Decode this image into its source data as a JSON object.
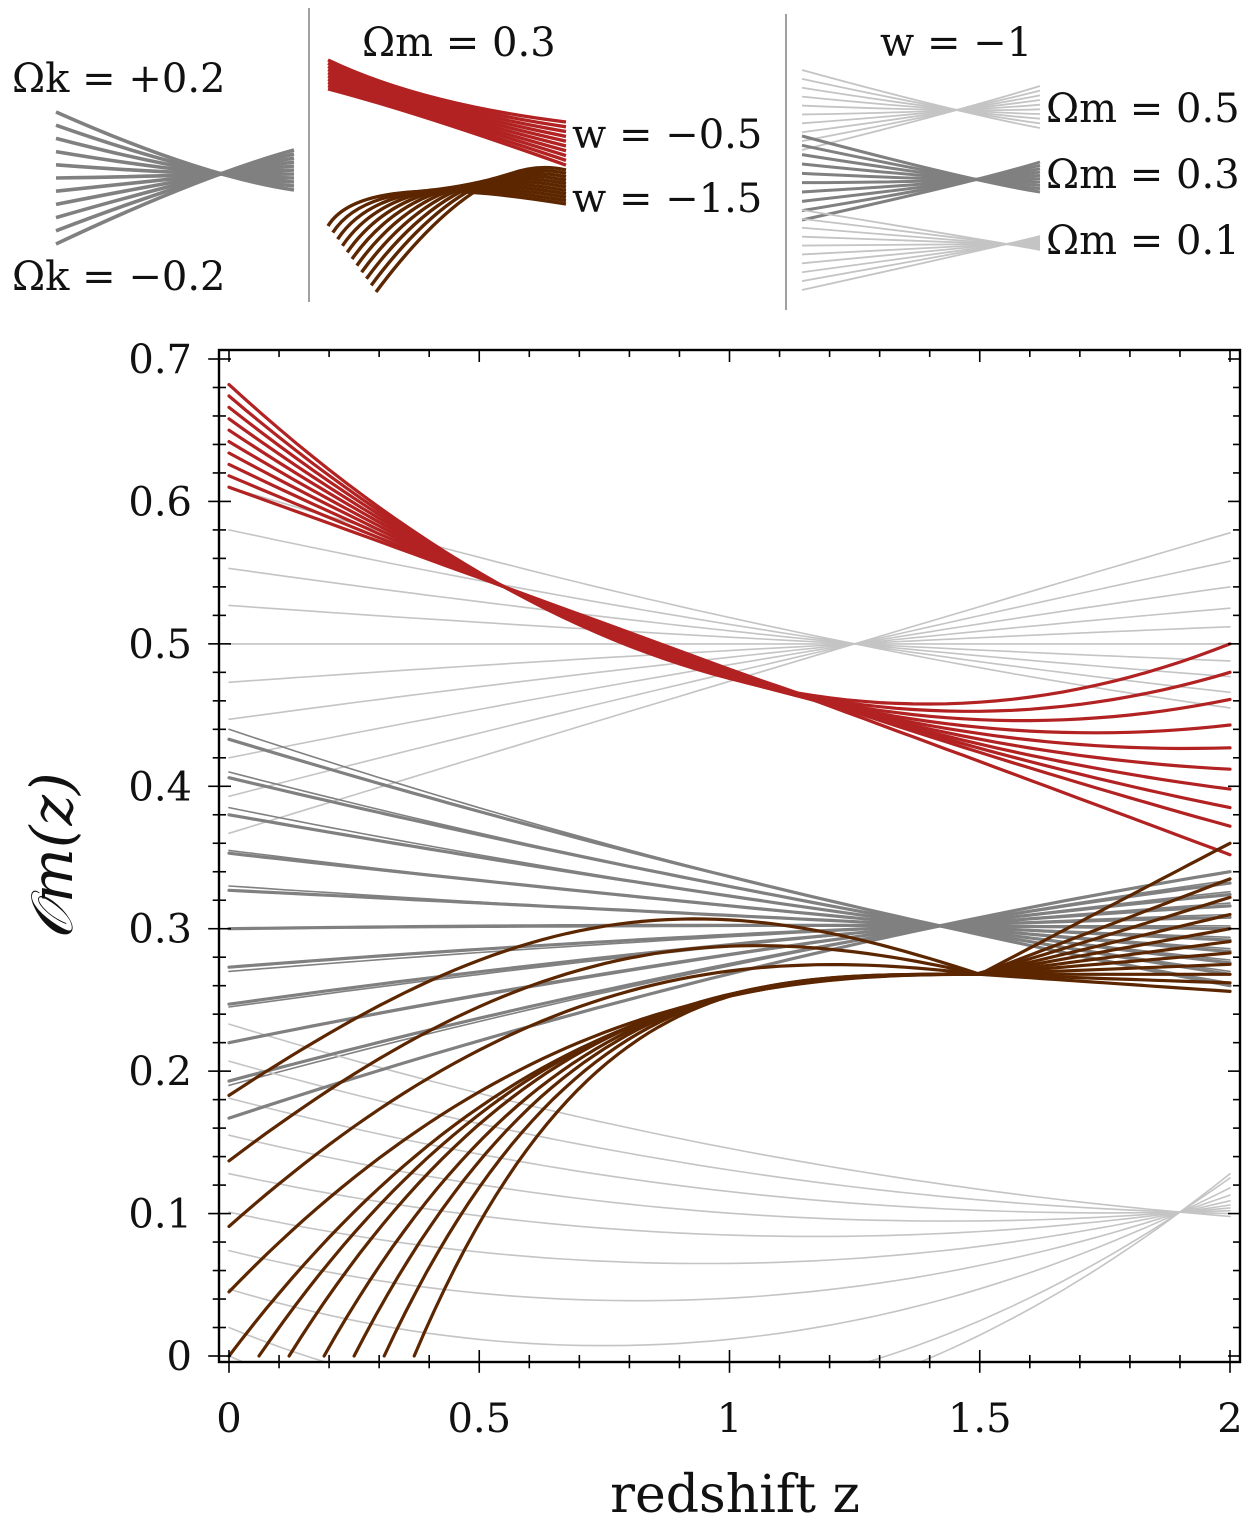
{
  "chart_data": {
    "type": "line",
    "xlabel": "redshift z",
    "ylabel": "𝒪m(z)",
    "xlim": [
      0,
      2
    ],
    "ylim": [
      0,
      0.7
    ],
    "xticks": [
      0,
      0.5,
      1,
      1.5,
      2
    ],
    "xtick_labels": [
      "0",
      "0.5",
      "1",
      "1.5",
      "2"
    ],
    "yticks": [
      0,
      0.1,
      0.2,
      0.3,
      0.4,
      0.5,
      0.6,
      0.7
    ],
    "ytick_labels": [
      "0",
      "0.1",
      "0.2",
      "0.3",
      "0.4",
      "0.5",
      "0.6",
      "0.7"
    ],
    "grid": false,
    "colors": {
      "curvature": "#808080",
      "w_minus_0_5": "#b22222",
      "w_minus_1_5": "#5c2600",
      "omega_m_light": "#c4c4c4",
      "omega_m_mid": "#808080"
    },
    "series": [
      {
        "name": "curvature family (Ωm = 0.3, w = −1), Ωk from +0.2 to −0.2",
        "color_key": "curvature",
        "width": 3.2,
        "z0": 0.0,
        "z_cross": 1.42,
        "y_cross": 0.302,
        "y_start": [
          0.433,
          0.406,
          0.38,
          0.353,
          0.327,
          0.3,
          0.273,
          0.247,
          0.22,
          0.193,
          0.167
        ],
        "y_end": [
          0.26,
          0.268,
          0.276,
          0.284,
          0.292,
          0.3,
          0.308,
          0.316,
          0.324,
          0.332,
          0.34
        ]
      },
      {
        "name": "w = −0.5 family (Ωm = 0.3)",
        "color_key": "w_minus_0_5",
        "width": 3.2,
        "z0": 0.0,
        "z_cross": 0.55,
        "y_cross": 0.54,
        "y_start": [
          0.682,
          0.674,
          0.666,
          0.658,
          0.65,
          0.642,
          0.634,
          0.626,
          0.618,
          0.61
        ],
        "y_end": [
          0.5,
          0.48,
          0.461,
          0.443,
          0.427,
          0.412,
          0.398,
          0.385,
          0.372,
          0.352
        ]
      },
      {
        "name": "w = −1.5 family (Ωm = 0.3)",
        "color_key": "w_minus_1_5",
        "width": 3.2,
        "z_cross": 1.5,
        "y_cross": 0.268,
        "z_start": [
          0.0,
          0.0,
          0.0,
          0.0,
          0.0,
          0.06,
          0.12,
          0.19,
          0.25,
          0.31,
          0.37
        ],
        "y_start": [
          0.183,
          0.137,
          0.091,
          0.045,
          0.0,
          0.0,
          0.0,
          0.0,
          0.0,
          0.0,
          0.0
        ],
        "z_peak": [
          0.75,
          0.9,
          1.05,
          1.2,
          1.35,
          1.4,
          1.45,
          1.5,
          1.5,
          1.5,
          1.5
        ],
        "y_end": [
          0.256,
          0.262,
          0.268,
          0.275,
          0.283,
          0.291,
          0.3,
          0.31,
          0.322,
          0.335,
          0.36
        ]
      },
      {
        "name": "Ωm = 0.5 family (w = −1)",
        "color_key": "omega_m_light",
        "width": 1.6,
        "z0": 0.0,
        "z_cross": 1.25,
        "y_cross": 0.5,
        "y_start": [
          0.61,
          0.58,
          0.553,
          0.527,
          0.5,
          0.473,
          0.447,
          0.42,
          0.393,
          0.367
        ],
        "y_end": [
          0.455,
          0.466,
          0.477,
          0.488,
          0.5,
          0.512,
          0.525,
          0.54,
          0.558,
          0.578
        ]
      },
      {
        "name": "Ωm = 0.3 family (w = −1)",
        "color_key": "omega_m_mid",
        "width": 1.6,
        "z0": 0.0,
        "z_cross": 1.42,
        "y_cross": 0.302,
        "y_start": [
          0.44,
          0.41,
          0.385,
          0.355,
          0.33,
          0.3,
          0.27,
          0.245,
          0.22,
          0.19
        ],
        "y_end": [
          0.262,
          0.27,
          0.278,
          0.286,
          0.294,
          0.302,
          0.31,
          0.318,
          0.326,
          0.334
        ]
      },
      {
        "name": "Ωm = 0.1 family (w = −1)",
        "color_key": "omega_m_light",
        "width": 1.6,
        "z0": 0.0,
        "z_cross": 1.9,
        "y_cross": 0.101,
        "y_start": [
          0.233,
          0.207,
          0.181,
          0.155,
          0.128,
          0.101,
          0.074,
          0.047,
          0.02,
          0.0
        ],
        "y_end": [
          0.098,
          0.1,
          0.102,
          0.104,
          0.106,
          0.109,
          0.113,
          0.118,
          0.125,
          0.128
        ]
      }
    ]
  },
  "legend": {
    "panel1": {
      "top_label": "Ωk = +0.2",
      "bottom_label": "Ωk = −0.2"
    },
    "panel2": {
      "title": "Ωm = 0.3",
      "label_red": "w = −0.5",
      "label_brown": "w = −1.5"
    },
    "panel3": {
      "title": "w = −1",
      "label_top": "Ωm = 0.5",
      "label_mid": "Ωm = 0.3",
      "label_bot": "Ωm = 0.1"
    }
  }
}
